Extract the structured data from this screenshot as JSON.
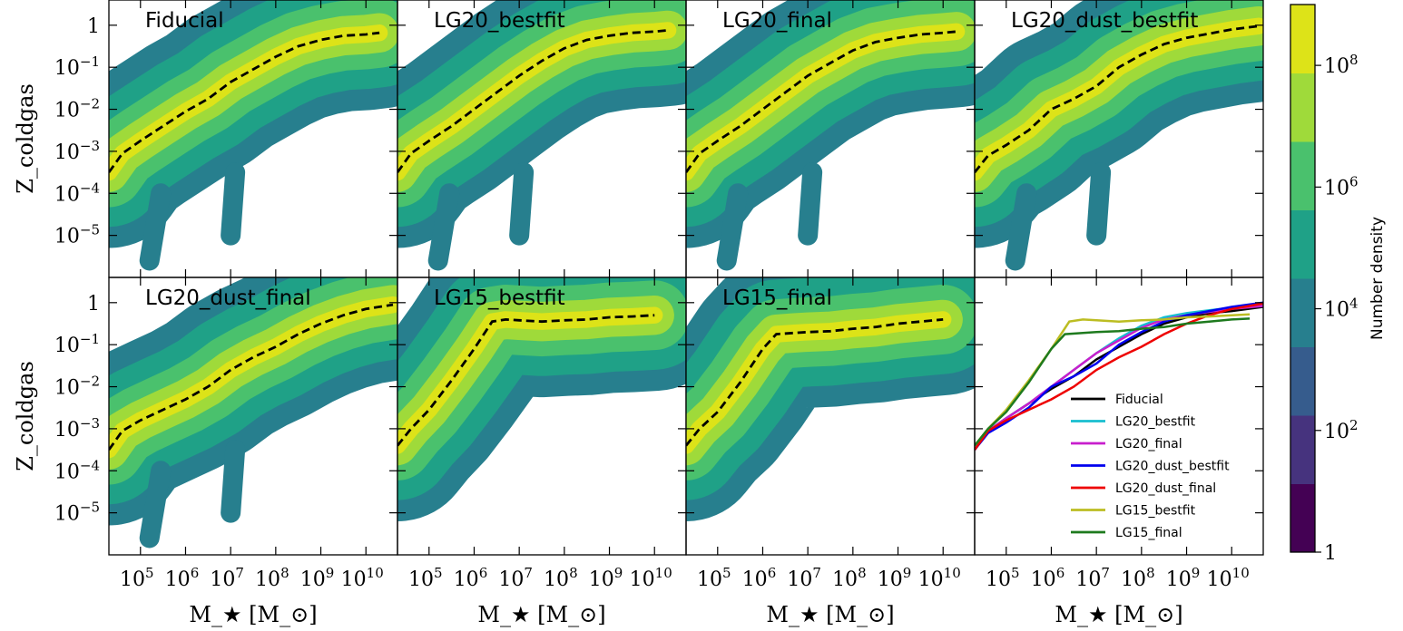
{
  "chart_data": {
    "type": "heatmap",
    "layout": "2x4 grid of panels",
    "xlabel": "M_★ [M_⊙]",
    "ylabel": "Z_coldgas",
    "x_scale": "log",
    "y_scale": "log",
    "xlim_log10": [
      4.3,
      10.7
    ],
    "ylim_log10": [
      -6.0,
      0.6
    ],
    "x_ticks": [
      {
        "exp": 5,
        "label": "10",
        "sup": "5"
      },
      {
        "exp": 6,
        "label": "10",
        "sup": "6"
      },
      {
        "exp": 7,
        "label": "10",
        "sup": "7"
      },
      {
        "exp": 8,
        "label": "10",
        "sup": "8"
      },
      {
        "exp": 9,
        "label": "10",
        "sup": "9"
      },
      {
        "exp": 10,
        "label": "10",
        "sup": "10"
      }
    ],
    "y_ticks": [
      {
        "exp": 0,
        "label": "1",
        "sup": ""
      },
      {
        "exp": -1,
        "label": "10",
        "sup": "−1"
      },
      {
        "exp": -2,
        "label": "10",
        "sup": "−2"
      },
      {
        "exp": -3,
        "label": "10",
        "sup": "−3"
      },
      {
        "exp": -4,
        "label": "10",
        "sup": "−4"
      },
      {
        "exp": -5,
        "label": "10",
        "sup": "−5"
      }
    ],
    "colorbar": {
      "label": "Number density",
      "scale": "log",
      "range_log10": [
        0,
        9
      ],
      "bands": [
        "#440154",
        "#46337e",
        "#365c8d",
        "#277f8e",
        "#1fa187",
        "#4ac16d",
        "#9fda3a",
        "#dde318"
      ],
      "ticks": [
        {
          "exp": 0,
          "label": "1",
          "sup": ""
        },
        {
          "exp": 2,
          "label": "10",
          "sup": "2"
        },
        {
          "exp": 4,
          "label": "10",
          "sup": "4"
        },
        {
          "exp": 6,
          "label": "10",
          "sup": "6"
        },
        {
          "exp": 8,
          "label": "10",
          "sup": "8"
        }
      ]
    },
    "panels": [
      {
        "title": "Fiducial",
        "median": [
          [
            4.3,
            -3.5
          ],
          [
            4.6,
            -3.05
          ],
          [
            5.0,
            -2.75
          ],
          [
            5.5,
            -2.4
          ],
          [
            6.0,
            -2.05
          ],
          [
            6.5,
            -1.75
          ],
          [
            7.0,
            -1.35
          ],
          [
            7.5,
            -1.05
          ],
          [
            8.0,
            -0.75
          ],
          [
            8.5,
            -0.5
          ],
          [
            9.0,
            -0.35
          ],
          [
            9.5,
            -0.25
          ],
          [
            10.0,
            -0.22
          ],
          [
            10.3,
            -0.18
          ]
        ]
      },
      {
        "title": "LG20_bestfit",
        "median": [
          [
            4.3,
            -3.5
          ],
          [
            4.6,
            -3.05
          ],
          [
            5.0,
            -2.75
          ],
          [
            5.5,
            -2.4
          ],
          [
            6.0,
            -2.0
          ],
          [
            6.5,
            -1.6
          ],
          [
            7.0,
            -1.2
          ],
          [
            7.5,
            -0.85
          ],
          [
            8.0,
            -0.55
          ],
          [
            8.5,
            -0.35
          ],
          [
            9.0,
            -0.25
          ],
          [
            9.5,
            -0.18
          ],
          [
            10.0,
            -0.15
          ],
          [
            10.3,
            -0.12
          ]
        ]
      },
      {
        "title": "LG20_final",
        "median": [
          [
            4.3,
            -3.5
          ],
          [
            4.6,
            -3.05
          ],
          [
            5.0,
            -2.75
          ],
          [
            5.5,
            -2.4
          ],
          [
            6.0,
            -2.0
          ],
          [
            6.5,
            -1.6
          ],
          [
            7.0,
            -1.2
          ],
          [
            7.5,
            -0.9
          ],
          [
            8.0,
            -0.6
          ],
          [
            8.5,
            -0.4
          ],
          [
            9.0,
            -0.3
          ],
          [
            9.5,
            -0.22
          ],
          [
            10.0,
            -0.18
          ],
          [
            10.3,
            -0.15
          ]
        ]
      },
      {
        "title": "LG20_dust_bestfit",
        "median": [
          [
            4.3,
            -3.5
          ],
          [
            4.6,
            -3.1
          ],
          [
            5.0,
            -2.85
          ],
          [
            5.5,
            -2.5
          ],
          [
            6.0,
            -2.0
          ],
          [
            6.5,
            -1.75
          ],
          [
            7.0,
            -1.45
          ],
          [
            7.5,
            -1.0
          ],
          [
            8.0,
            -0.7
          ],
          [
            8.5,
            -0.45
          ],
          [
            9.0,
            -0.3
          ],
          [
            9.5,
            -0.2
          ],
          [
            10.0,
            -0.1
          ],
          [
            10.6,
            -0.02
          ]
        ]
      },
      {
        "title": "LG20_dust_final",
        "median": [
          [
            4.3,
            -3.5
          ],
          [
            4.6,
            -3.05
          ],
          [
            5.0,
            -2.8
          ],
          [
            5.5,
            -2.55
          ],
          [
            6.0,
            -2.3
          ],
          [
            6.5,
            -2.0
          ],
          [
            7.0,
            -1.6
          ],
          [
            7.5,
            -1.3
          ],
          [
            8.0,
            -1.05
          ],
          [
            8.5,
            -0.75
          ],
          [
            9.0,
            -0.5
          ],
          [
            9.5,
            -0.3
          ],
          [
            10.0,
            -0.15
          ],
          [
            10.6,
            -0.05
          ]
        ]
      },
      {
        "title": "LG15_bestfit",
        "median": [
          [
            4.3,
            -3.4
          ],
          [
            4.6,
            -3.0
          ],
          [
            5.0,
            -2.55
          ],
          [
            5.5,
            -1.85
          ],
          [
            6.0,
            -1.1
          ],
          [
            6.4,
            -0.45
          ],
          [
            6.7,
            -0.4
          ],
          [
            7.0,
            -0.42
          ],
          [
            7.5,
            -0.45
          ],
          [
            8.0,
            -0.42
          ],
          [
            8.5,
            -0.4
          ],
          [
            9.0,
            -0.35
          ],
          [
            9.5,
            -0.33
          ],
          [
            10.0,
            -0.3
          ]
        ]
      },
      {
        "title": "LG15_final",
        "median": [
          [
            4.3,
            -3.4
          ],
          [
            4.6,
            -3.0
          ],
          [
            5.0,
            -2.6
          ],
          [
            5.5,
            -1.9
          ],
          [
            6.0,
            -1.1
          ],
          [
            6.3,
            -0.75
          ],
          [
            6.7,
            -0.72
          ],
          [
            7.0,
            -0.7
          ],
          [
            7.5,
            -0.68
          ],
          [
            8.0,
            -0.62
          ],
          [
            8.5,
            -0.58
          ],
          [
            9.0,
            -0.5
          ],
          [
            9.5,
            -0.45
          ],
          [
            10.0,
            -0.4
          ]
        ]
      },
      {
        "title": "",
        "comparison": true
      }
    ],
    "legend": {
      "placement": "lower-right",
      "entries": [
        {
          "name": "Fiducial",
          "color": "#000000"
        },
        {
          "name": "LG20_bestfit",
          "color": "#17becf"
        },
        {
          "name": "LG20_final",
          "color": "#c81ecc"
        },
        {
          "name": "LG20_dust_bestfit",
          "color": "#0000ee"
        },
        {
          "name": "LG20_dust_final",
          "color": "#ee0000"
        },
        {
          "name": "LG15_bestfit",
          "color": "#bcbd22"
        },
        {
          "name": "LG15_final",
          "color": "#1e7a1e"
        }
      ]
    },
    "comparison_series": [
      {
        "name": "Fiducial",
        "color": "#000000",
        "values": [
          [
            4.3,
            -3.5
          ],
          [
            4.6,
            -3.05
          ],
          [
            5.0,
            -2.75
          ],
          [
            5.5,
            -2.4
          ],
          [
            6.0,
            -2.05
          ],
          [
            6.5,
            -1.75
          ],
          [
            7.0,
            -1.35
          ],
          [
            7.5,
            -1.05
          ],
          [
            8.0,
            -0.75
          ],
          [
            8.5,
            -0.5
          ],
          [
            9.0,
            -0.35
          ],
          [
            9.5,
            -0.25
          ],
          [
            10.0,
            -0.2
          ],
          [
            10.7,
            -0.1
          ]
        ]
      },
      {
        "name": "LG20_bestfit",
        "color": "#17becf",
        "values": [
          [
            4.3,
            -3.5
          ],
          [
            4.6,
            -3.05
          ],
          [
            5.0,
            -2.75
          ],
          [
            5.5,
            -2.4
          ],
          [
            6.0,
            -2.0
          ],
          [
            6.5,
            -1.6
          ],
          [
            7.0,
            -1.2
          ],
          [
            7.5,
            -0.85
          ],
          [
            8.0,
            -0.55
          ],
          [
            8.5,
            -0.35
          ],
          [
            9.0,
            -0.25
          ],
          [
            9.5,
            -0.18
          ],
          [
            10.0,
            -0.12
          ],
          [
            10.7,
            -0.05
          ]
        ]
      },
      {
        "name": "LG20_final",
        "color": "#c81ecc",
        "values": [
          [
            4.3,
            -3.5
          ],
          [
            4.6,
            -3.05
          ],
          [
            5.0,
            -2.75
          ],
          [
            5.5,
            -2.4
          ],
          [
            6.0,
            -2.0
          ],
          [
            6.5,
            -1.6
          ],
          [
            7.0,
            -1.2
          ],
          [
            7.5,
            -0.9
          ],
          [
            8.0,
            -0.6
          ],
          [
            8.5,
            -0.4
          ],
          [
            9.0,
            -0.3
          ],
          [
            9.5,
            -0.22
          ],
          [
            10.0,
            -0.15
          ],
          [
            10.7,
            -0.08
          ]
        ]
      },
      {
        "name": "LG20_dust_bestfit",
        "color": "#0000ee",
        "values": [
          [
            4.3,
            -3.5
          ],
          [
            4.6,
            -3.1
          ],
          [
            5.0,
            -2.85
          ],
          [
            5.5,
            -2.5
          ],
          [
            6.0,
            -2.0
          ],
          [
            6.5,
            -1.75
          ],
          [
            7.0,
            -1.45
          ],
          [
            7.5,
            -1.0
          ],
          [
            8.0,
            -0.7
          ],
          [
            8.5,
            -0.45
          ],
          [
            9.0,
            -0.3
          ],
          [
            9.5,
            -0.2
          ],
          [
            10.0,
            -0.1
          ],
          [
            10.7,
            0.0
          ]
        ]
      },
      {
        "name": "LG20_dust_final",
        "color": "#ee0000",
        "values": [
          [
            4.3,
            -3.5
          ],
          [
            4.6,
            -3.05
          ],
          [
            5.0,
            -2.8
          ],
          [
            5.5,
            -2.55
          ],
          [
            6.0,
            -2.3
          ],
          [
            6.5,
            -2.0
          ],
          [
            7.0,
            -1.6
          ],
          [
            7.5,
            -1.3
          ],
          [
            8.0,
            -1.05
          ],
          [
            8.5,
            -0.75
          ],
          [
            9.0,
            -0.5
          ],
          [
            9.5,
            -0.3
          ],
          [
            10.0,
            -0.15
          ],
          [
            10.7,
            -0.02
          ]
        ]
      },
      {
        "name": "LG15_bestfit",
        "color": "#bcbd22",
        "values": [
          [
            4.3,
            -3.4
          ],
          [
            4.6,
            -3.0
          ],
          [
            5.0,
            -2.55
          ],
          [
            5.5,
            -1.85
          ],
          [
            6.0,
            -1.1
          ],
          [
            6.4,
            -0.45
          ],
          [
            6.7,
            -0.4
          ],
          [
            7.0,
            -0.42
          ],
          [
            7.5,
            -0.45
          ],
          [
            8.0,
            -0.42
          ],
          [
            8.5,
            -0.4
          ],
          [
            9.0,
            -0.35
          ],
          [
            9.5,
            -0.33
          ],
          [
            10.0,
            -0.3
          ],
          [
            10.4,
            -0.28
          ]
        ]
      },
      {
        "name": "LG15_final",
        "color": "#1e7a1e",
        "values": [
          [
            4.3,
            -3.4
          ],
          [
            4.6,
            -3.0
          ],
          [
            5.0,
            -2.6
          ],
          [
            5.5,
            -1.9
          ],
          [
            6.0,
            -1.1
          ],
          [
            6.3,
            -0.75
          ],
          [
            6.7,
            -0.72
          ],
          [
            7.0,
            -0.7
          ],
          [
            7.5,
            -0.68
          ],
          [
            8.0,
            -0.62
          ],
          [
            8.5,
            -0.58
          ],
          [
            9.0,
            -0.5
          ],
          [
            9.5,
            -0.45
          ],
          [
            10.0,
            -0.4
          ],
          [
            10.4,
            -0.38
          ]
        ]
      }
    ]
  }
}
